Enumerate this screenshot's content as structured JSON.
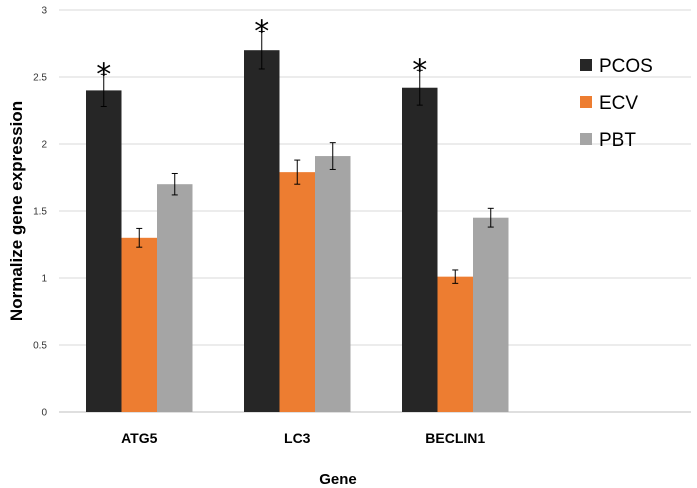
{
  "chart_data": {
    "type": "bar",
    "title": "",
    "xlabel": "Gene",
    "ylabel": "Normalize  gene expression",
    "ylim": [
      0,
      3
    ],
    "yticks": [
      "0",
      "0.5",
      "1",
      "1.5",
      "2",
      "2.5",
      "3"
    ],
    "grid": true,
    "legend_position": "top-right",
    "categories": [
      "ATG5",
      "LC3",
      "BECLIN1"
    ],
    "series": [
      {
        "name": "PCOS",
        "color": "#262626",
        "values": [
          2.4,
          2.7,
          2.42
        ],
        "errors": [
          0.12,
          0.14,
          0.13
        ]
      },
      {
        "name": "ECV",
        "color": "#ed7d31",
        "values": [
          1.3,
          1.79,
          1.01
        ],
        "errors": [
          0.07,
          0.09,
          0.05
        ]
      },
      {
        "name": "PBT",
        "color": "#a5a5a5",
        "values": [
          1.7,
          1.91,
          1.45
        ],
        "errors": [
          0.08,
          0.1,
          0.07
        ]
      }
    ],
    "annotations": [
      {
        "category": "ATG5",
        "series": "PCOS",
        "text": "*"
      },
      {
        "category": "LC3",
        "series": "PCOS",
        "text": "*"
      },
      {
        "category": "BECLIN1",
        "series": "PCOS",
        "text": "*"
      }
    ]
  }
}
